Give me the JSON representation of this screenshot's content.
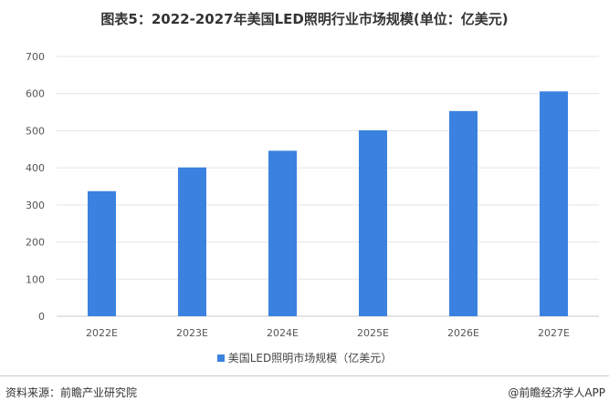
{
  "title": "图表5：2022-2027年美国LED照明行业市场规模(单位：亿美元)",
  "chart_data": {
    "type": "bar",
    "categories": [
      "2022E",
      "2023E",
      "2024E",
      "2025E",
      "2026E",
      "2027E"
    ],
    "series": [
      {
        "name": "美国LED照明市场规模（亿美元）",
        "values": [
          337,
          401,
          446,
          501,
          553,
          606
        ]
      }
    ],
    "ylim": [
      0,
      700
    ],
    "yticks": [
      0,
      100,
      200,
      300,
      400,
      500,
      600,
      700
    ],
    "grid": true,
    "legend_position": "bottom",
    "color": "#3b82e0"
  },
  "footer": {
    "source": "资料来源：前瞻产业研究院",
    "brand": "@前瞻经济学人APP"
  }
}
